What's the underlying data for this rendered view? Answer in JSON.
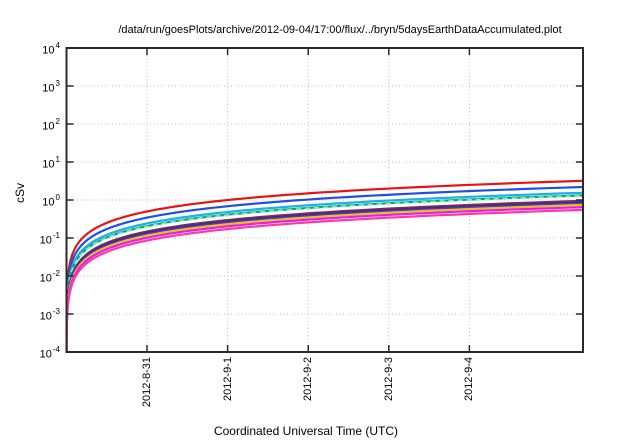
{
  "chart_data": {
    "type": "line",
    "title": "/data/run/goesPlots/archive/2012-09-04/17:00/flux/../bryn/5daysEarthDataAccumulated.plot",
    "xlabel": "Coordinated Universal Time (UTC)",
    "ylabel": "cSv",
    "y_axis": {
      "scale": "log10",
      "tick_exponents": [
        4,
        3,
        2,
        1,
        0,
        -1,
        -2,
        -3,
        -4
      ],
      "range_exponents": [
        -4,
        4
      ],
      "grid": true
    },
    "x_axis": {
      "tick_labels": [
        "2012-8-31",
        "2012-9-1",
        "2012-9-2",
        "2012-9-3",
        "2012-9-4"
      ],
      "tick_day_offsets": [
        1,
        2,
        3,
        4,
        5
      ],
      "total_days_shown": 6.41,
      "grid": true
    },
    "model": "accumulated-dose: value grows ~linearly with time from start at left edge, plotted on log-y",
    "series": [
      {
        "name": "red",
        "color": "#e81414",
        "style": "solid",
        "final_cSv": 3.2
      },
      {
        "name": "blue",
        "color": "#1f4fe8",
        "style": "solid",
        "final_cSv": 2.2
      },
      {
        "name": "cyan",
        "color": "#1ab0e8",
        "style": "solid",
        "final_cSv": 1.55
      },
      {
        "name": "teal-green",
        "color": "#0ca878",
        "style": "solid",
        "final_cSv": 1.32
      },
      {
        "name": "pale-teal-dashed",
        "color": "#8ae8c8",
        "style": "dashed",
        "final_cSv": 1.28
      },
      {
        "name": "maroon",
        "color": "#8a2b45",
        "style": "solid",
        "final_cSv": 0.95
      },
      {
        "name": "navy",
        "color": "#2f2f9e",
        "style": "solid",
        "final_cSv": 0.87
      },
      {
        "name": "purple",
        "color": "#6a30b8",
        "style": "solid",
        "final_cSv": 0.8
      },
      {
        "name": "yellow",
        "color": "#ddc816",
        "style": "solid",
        "final_cSv": 0.74
      },
      {
        "name": "magenta",
        "color": "#e81ee8",
        "style": "solid",
        "final_cSv": 0.65
      },
      {
        "name": "pink",
        "color": "#ff37a8",
        "style": "solid",
        "final_cSv": 0.55
      }
    ]
  },
  "colors": {
    "background": "#ffffff",
    "grid": "#bbbbbb",
    "border": "#2a2a2a",
    "text": "#000000"
  }
}
